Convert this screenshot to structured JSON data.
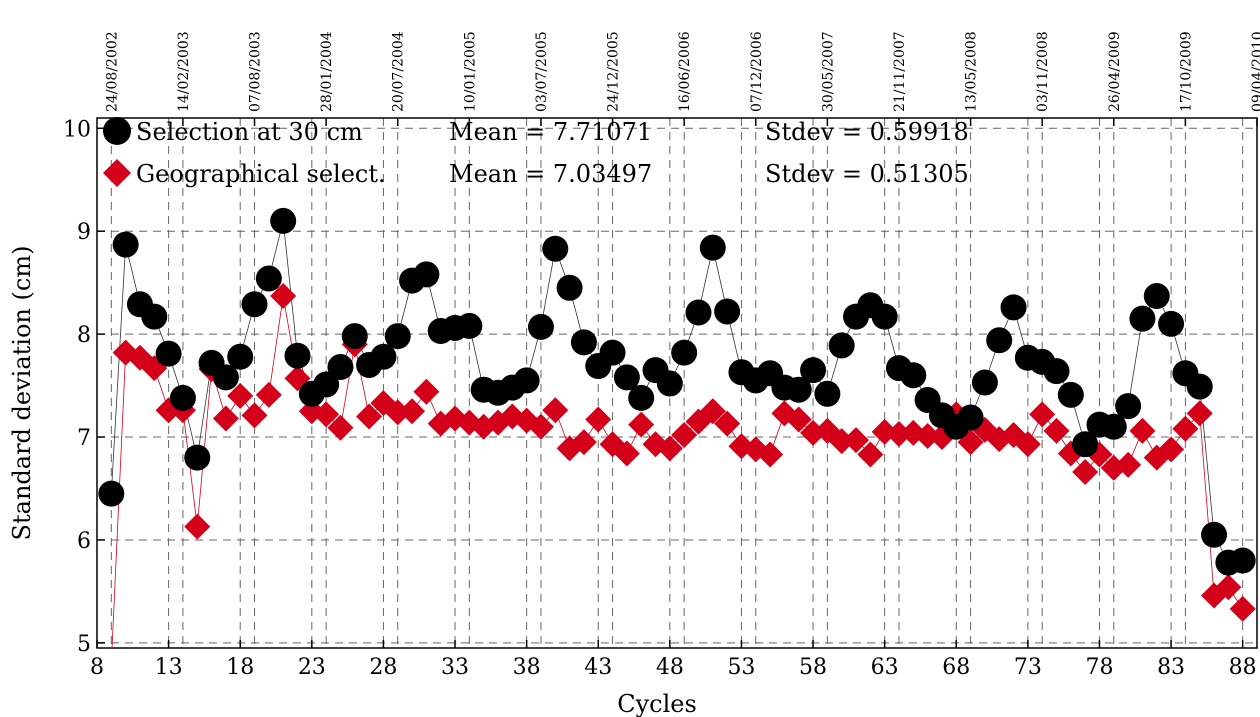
{
  "chart_data": {
    "type": "scatter",
    "title": "",
    "xlabel": "Cycles",
    "ylabel": "Standard deviation (cm)",
    "xlim": [
      8,
      89
    ],
    "ylim": [
      4.95,
      10.1
    ],
    "xticks": [
      8,
      13,
      18,
      23,
      28,
      33,
      38,
      43,
      48,
      53,
      58,
      63,
      68,
      73,
      78,
      83,
      88
    ],
    "yticks": [
      5,
      6,
      7,
      8,
      9,
      10
    ],
    "top_ticks": [
      {
        "x": 9,
        "label": "24/08/2002"
      },
      {
        "x": 14,
        "label": "14/02/2003"
      },
      {
        "x": 19,
        "label": "07/08/2003"
      },
      {
        "x": 24,
        "label": "28/01/2004"
      },
      {
        "x": 29,
        "label": "20/07/2004"
      },
      {
        "x": 34,
        "label": "10/01/2005"
      },
      {
        "x": 39,
        "label": "03/07/2005"
      },
      {
        "x": 44,
        "label": "24/12/2005"
      },
      {
        "x": 49,
        "label": "16/06/2006"
      },
      {
        "x": 54,
        "label": "07/12/2006"
      },
      {
        "x": 59,
        "label": "30/05/2007"
      },
      {
        "x": 64,
        "label": "21/11/2007"
      },
      {
        "x": 69,
        "label": "13/05/2008"
      },
      {
        "x": 74,
        "label": "03/11/2008"
      },
      {
        "x": 79,
        "label": "26/04/2009"
      },
      {
        "x": 84,
        "label": "17/10/2009"
      },
      {
        "x": 89,
        "label": "09/04/2010"
      }
    ],
    "grid": true,
    "legend_position": "top-left",
    "series": [
      {
        "name": "Selection at 30 cm",
        "mean_text": "Mean = 7.71071",
        "stdev_text": "Stdev = 0.59918",
        "marker": "circle",
        "color": "#000000",
        "x": [
          9,
          10,
          11,
          12,
          13,
          14,
          15,
          16,
          17,
          18,
          19,
          20,
          21,
          22,
          23,
          24,
          25,
          26,
          27,
          28,
          29,
          30,
          31,
          32,
          33,
          34,
          35,
          36,
          37,
          38,
          39,
          40,
          41,
          42,
          43,
          44,
          45,
          46,
          47,
          48,
          49,
          50,
          51,
          52,
          53,
          54,
          55,
          56,
          57,
          58,
          59,
          60,
          61,
          62,
          63,
          64,
          65,
          66,
          67,
          68,
          69,
          70,
          71,
          72,
          73,
          74,
          75,
          76,
          77,
          78,
          79,
          80,
          81,
          82,
          83,
          84,
          85,
          86,
          87,
          88
        ],
        "y": [
          6.45,
          8.87,
          8.29,
          8.17,
          7.81,
          7.38,
          6.8,
          7.72,
          7.58,
          7.78,
          8.29,
          8.54,
          9.1,
          7.79,
          7.42,
          7.51,
          7.68,
          7.98,
          7.7,
          7.78,
          7.98,
          8.52,
          8.58,
          8.03,
          8.06,
          8.08,
          7.46,
          7.43,
          7.48,
          7.55,
          8.07,
          8.83,
          8.45,
          7.92,
          7.69,
          7.82,
          7.58,
          7.38,
          7.65,
          7.52,
          7.82,
          8.21,
          8.84,
          8.22,
          7.63,
          7.55,
          7.62,
          7.48,
          7.46,
          7.65,
          7.42,
          7.89,
          8.17,
          8.28,
          8.17,
          7.67,
          7.6,
          7.36,
          7.21,
          7.1,
          7.19,
          7.53,
          7.94,
          8.26,
          7.77,
          7.73,
          7.64,
          7.41,
          6.93,
          7.12,
          7.1,
          7.3,
          8.15,
          8.37,
          8.1,
          7.62,
          7.49,
          6.05,
          5.78,
          5.8
        ]
      },
      {
        "name": "Geographical select.",
        "mean_text": "Mean = 7.03497",
        "stdev_text": "Stdev = 0.51305",
        "marker": "diamond",
        "color": "#d4001a",
        "x": [
          9,
          10,
          11,
          12,
          13,
          14,
          15,
          16,
          17,
          18,
          19,
          20,
          21,
          22,
          23,
          24,
          25,
          26,
          27,
          28,
          29,
          30,
          31,
          32,
          33,
          34,
          35,
          36,
          37,
          38,
          39,
          40,
          41,
          42,
          43,
          44,
          45,
          46,
          47,
          48,
          49,
          50,
          51,
          52,
          53,
          54,
          55,
          56,
          57,
          58,
          59,
          60,
          61,
          62,
          63,
          64,
          65,
          66,
          67,
          68,
          69,
          70,
          71,
          72,
          73,
          74,
          75,
          76,
          77,
          78,
          79,
          80,
          81,
          82,
          83,
          84,
          85,
          86,
          87,
          88
        ],
        "y": [
          4.8,
          7.82,
          7.77,
          7.67,
          7.26,
          7.26,
          6.13,
          7.66,
          7.18,
          7.4,
          7.21,
          7.41,
          8.37,
          7.57,
          7.25,
          7.22,
          7.09,
          7.9,
          7.2,
          7.33,
          7.24,
          7.25,
          7.44,
          7.13,
          7.18,
          7.14,
          7.1,
          7.14,
          7.2,
          7.16,
          7.1,
          7.26,
          6.89,
          6.95,
          7.17,
          6.93,
          6.84,
          7.12,
          6.93,
          6.89,
          7.02,
          7.15,
          7.25,
          7.13,
          6.91,
          6.88,
          6.83,
          7.23,
          7.17,
          7.04,
          7.06,
          6.96,
          6.97,
          6.83,
          7.05,
          7.03,
          7.04,
          7.01,
          7.0,
          7.22,
          6.95,
          7.07,
          6.98,
          7.02,
          6.93,
          7.22,
          7.06,
          6.84,
          6.66,
          6.83,
          6.7,
          6.73,
          7.06,
          6.8,
          6.88,
          7.08,
          7.23,
          5.46,
          5.54,
          5.33
        ]
      }
    ]
  }
}
